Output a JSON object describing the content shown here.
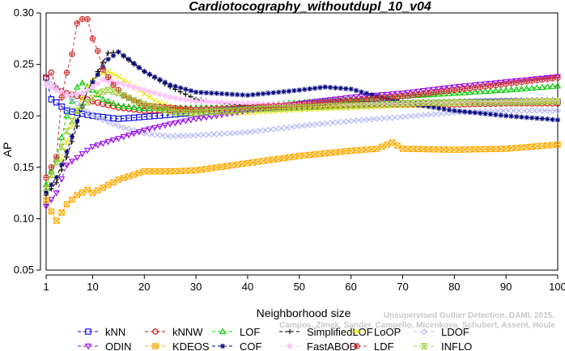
{
  "chart_data": {
    "type": "line",
    "title": "Cardiotocography_withoutdupl_10_v04",
    "xlabel": "Neighborhood size",
    "ylabel": "AP",
    "xlim": [
      1,
      100
    ],
    "ylim": [
      0.05,
      0.3
    ],
    "xticks": [
      1,
      10,
      20,
      30,
      40,
      50,
      60,
      70,
      80,
      90,
      100
    ],
    "yticks": [
      0.05,
      0.1,
      0.15,
      0.2,
      0.25,
      0.3
    ],
    "ytick_labels": [
      "0.05",
      "0.10",
      "0.15",
      "0.20",
      "0.25",
      "0.30"
    ],
    "grid": false,
    "legend_position": "bottom",
    "credit_lines": [
      "Unsupervised Outlier Detection. DAMI, 2015.",
      "Campos, Zimek, Sander, Campello, Micenkova, Schubert, Assent, Houle"
    ],
    "series": [
      {
        "name": "kNN",
        "color": "#0000ee",
        "marker": "square",
        "points": [
          [
            1,
            0.237
          ],
          [
            2,
            0.216
          ],
          [
            3,
            0.213
          ],
          [
            5,
            0.205
          ],
          [
            8,
            0.202
          ],
          [
            10,
            0.2
          ],
          [
            15,
            0.197
          ],
          [
            20,
            0.199
          ],
          [
            30,
            0.203
          ],
          [
            40,
            0.207
          ],
          [
            50,
            0.209
          ],
          [
            60,
            0.211
          ],
          [
            70,
            0.212
          ],
          [
            80,
            0.213
          ],
          [
            90,
            0.214
          ],
          [
            100,
            0.214
          ]
        ]
      },
      {
        "name": "kNNW",
        "color": "#dd0000",
        "marker": "circle",
        "points": [
          [
            1,
            0.237
          ],
          [
            2,
            0.242
          ],
          [
            3,
            0.226
          ],
          [
            5,
            0.222
          ],
          [
            8,
            0.218
          ],
          [
            10,
            0.214
          ],
          [
            15,
            0.208
          ],
          [
            20,
            0.205
          ],
          [
            30,
            0.206
          ],
          [
            40,
            0.208
          ],
          [
            50,
            0.209
          ],
          [
            60,
            0.21
          ],
          [
            70,
            0.211
          ],
          [
            80,
            0.211
          ],
          [
            90,
            0.212
          ],
          [
            100,
            0.212
          ]
        ]
      },
      {
        "name": "LOF",
        "color": "#00cc00",
        "marker": "triangle",
        "points": [
          [
            1,
            0.133
          ],
          [
            3,
            0.158
          ],
          [
            5,
            0.2
          ],
          [
            7,
            0.228
          ],
          [
            8,
            0.232
          ],
          [
            10,
            0.225
          ],
          [
            12,
            0.216
          ],
          [
            15,
            0.21
          ],
          [
            20,
            0.207
          ],
          [
            30,
            0.208
          ],
          [
            40,
            0.21
          ],
          [
            50,
            0.213
          ],
          [
            60,
            0.216
          ],
          [
            70,
            0.219
          ],
          [
            80,
            0.222
          ],
          [
            90,
            0.225
          ],
          [
            100,
            0.229
          ]
        ]
      },
      {
        "name": "SimplifiedLOF",
        "color": "#000000",
        "marker": "plus",
        "points": [
          [
            1,
            0.123
          ],
          [
            3,
            0.135
          ],
          [
            5,
            0.16
          ],
          [
            7,
            0.19
          ],
          [
            9,
            0.225
          ],
          [
            11,
            0.243
          ],
          [
            13,
            0.261
          ],
          [
            15,
            0.262
          ],
          [
            18,
            0.25
          ],
          [
            21,
            0.24
          ],
          [
            25,
            0.228
          ],
          [
            30,
            0.216
          ],
          [
            35,
            0.212
          ],
          [
            40,
            0.21
          ],
          [
            50,
            0.21
          ],
          [
            60,
            0.211
          ],
          [
            70,
            0.213
          ],
          [
            80,
            0.214
          ],
          [
            90,
            0.215
          ],
          [
            100,
            0.216
          ]
        ]
      },
      {
        "name": "LoOP",
        "color": "#e8e800",
        "marker": "x",
        "points": [
          [
            1,
            0.126
          ],
          [
            3,
            0.14
          ],
          [
            5,
            0.175
          ],
          [
            7,
            0.205
          ],
          [
            9,
            0.228
          ],
          [
            11,
            0.24
          ],
          [
            13,
            0.243
          ],
          [
            15,
            0.238
          ],
          [
            18,
            0.228
          ],
          [
            22,
            0.215
          ],
          [
            26,
            0.207
          ],
          [
            30,
            0.204
          ],
          [
            40,
            0.203
          ],
          [
            50,
            0.206
          ],
          [
            60,
            0.208
          ],
          [
            70,
            0.21
          ],
          [
            80,
            0.212
          ],
          [
            90,
            0.214
          ],
          [
            100,
            0.215
          ]
        ]
      },
      {
        "name": "LDOF",
        "color": "#b8b8f8",
        "marker": "diamond",
        "points": [
          [
            1,
            0.234
          ],
          [
            3,
            0.228
          ],
          [
            5,
            0.22
          ],
          [
            8,
            0.208
          ],
          [
            10,
            0.2
          ],
          [
            15,
            0.19
          ],
          [
            20,
            0.183
          ],
          [
            25,
            0.18
          ],
          [
            30,
            0.181
          ],
          [
            40,
            0.184
          ],
          [
            50,
            0.19
          ],
          [
            60,
            0.195
          ],
          [
            70,
            0.199
          ],
          [
            80,
            0.203
          ],
          [
            90,
            0.205
          ],
          [
            100,
            0.205
          ]
        ]
      },
      {
        "name": "ODIN",
        "color": "#9900ee",
        "marker": "triangle-down",
        "points": [
          [
            1,
            0.112
          ],
          [
            3,
            0.125
          ],
          [
            5,
            0.152
          ],
          [
            8,
            0.163
          ],
          [
            10,
            0.17
          ],
          [
            15,
            0.178
          ],
          [
            20,
            0.186
          ],
          [
            25,
            0.192
          ],
          [
            30,
            0.197
          ],
          [
            40,
            0.205
          ],
          [
            50,
            0.212
          ],
          [
            60,
            0.218
          ],
          [
            70,
            0.222
          ],
          [
            80,
            0.228
          ],
          [
            90,
            0.233
          ],
          [
            100,
            0.238
          ]
        ]
      },
      {
        "name": "KDEOS",
        "color": "#ffaa00",
        "marker": "boxed-x",
        "points": [
          [
            1,
            0.118
          ],
          [
            2,
            0.107
          ],
          [
            3,
            0.098
          ],
          [
            5,
            0.114
          ],
          [
            7,
            0.123
          ],
          [
            9,
            0.128
          ],
          [
            10,
            0.125
          ],
          [
            15,
            0.138
          ],
          [
            20,
            0.146
          ],
          [
            25,
            0.146
          ],
          [
            30,
            0.147
          ],
          [
            40,
            0.154
          ],
          [
            50,
            0.161
          ],
          [
            60,
            0.166
          ],
          [
            65,
            0.168
          ],
          [
            68,
            0.174
          ],
          [
            70,
            0.168
          ],
          [
            80,
            0.167
          ],
          [
            90,
            0.168
          ],
          [
            100,
            0.172
          ]
        ]
      },
      {
        "name": "COF",
        "color": "#00007a",
        "marker": "star",
        "points": [
          [
            1,
            0.126
          ],
          [
            3,
            0.14
          ],
          [
            5,
            0.165
          ],
          [
            7,
            0.195
          ],
          [
            9,
            0.225
          ],
          [
            11,
            0.24
          ],
          [
            13,
            0.255
          ],
          [
            15,
            0.262
          ],
          [
            17,
            0.255
          ],
          [
            20,
            0.243
          ],
          [
            25,
            0.23
          ],
          [
            30,
            0.223
          ],
          [
            40,
            0.22
          ],
          [
            50,
            0.225
          ],
          [
            55,
            0.228
          ],
          [
            60,
            0.226
          ],
          [
            65,
            0.219
          ],
          [
            70,
            0.213
          ],
          [
            80,
            0.205
          ],
          [
            90,
            0.2
          ],
          [
            100,
            0.196
          ]
        ]
      },
      {
        "name": "FastABOD",
        "color": "#ffc6ff",
        "marker": "diamond-filled",
        "points": [
          [
            1,
            0.23
          ],
          [
            3,
            0.225
          ],
          [
            5,
            0.22
          ],
          [
            8,
            0.222
          ],
          [
            10,
            0.228
          ],
          [
            12,
            0.235
          ],
          [
            15,
            0.232
          ],
          [
            20,
            0.225
          ],
          [
            25,
            0.218
          ],
          [
            30,
            0.214
          ],
          [
            40,
            0.212
          ],
          [
            50,
            0.211
          ],
          [
            60,
            0.211
          ],
          [
            70,
            0.212
          ],
          [
            80,
            0.213
          ],
          [
            90,
            0.214
          ],
          [
            100,
            0.215
          ]
        ]
      },
      {
        "name": "LDF",
        "color": "#cc3333",
        "marker": "circle-plus",
        "points": [
          [
            1,
            0.14
          ],
          [
            3,
            0.16
          ],
          [
            4,
            0.218
          ],
          [
            5,
            0.242
          ],
          [
            6,
            0.26
          ],
          [
            7,
            0.29
          ],
          [
            8,
            0.294
          ],
          [
            9,
            0.294
          ],
          [
            10,
            0.275
          ],
          [
            11,
            0.263
          ],
          [
            12,
            0.245
          ],
          [
            14,
            0.23
          ],
          [
            16,
            0.22
          ],
          [
            20,
            0.21
          ],
          [
            30,
            0.206
          ],
          [
            40,
            0.208
          ],
          [
            50,
            0.211
          ],
          [
            60,
            0.215
          ],
          [
            70,
            0.219
          ],
          [
            80,
            0.225
          ],
          [
            90,
            0.231
          ],
          [
            100,
            0.237
          ]
        ]
      },
      {
        "name": "INFLO",
        "color": "#99cc33",
        "marker": "hourglass",
        "points": [
          [
            1,
            0.13
          ],
          [
            3,
            0.155
          ],
          [
            5,
            0.185
          ],
          [
            7,
            0.205
          ],
          [
            9,
            0.213
          ],
          [
            11,
            0.222
          ],
          [
            13,
            0.225
          ],
          [
            15,
            0.222
          ],
          [
            18,
            0.215
          ],
          [
            22,
            0.208
          ],
          [
            26,
            0.203
          ],
          [
            30,
            0.203
          ],
          [
            40,
            0.206
          ],
          [
            50,
            0.208
          ],
          [
            60,
            0.21
          ],
          [
            70,
            0.212
          ],
          [
            80,
            0.213
          ],
          [
            90,
            0.213
          ],
          [
            100,
            0.214
          ]
        ]
      }
    ]
  }
}
